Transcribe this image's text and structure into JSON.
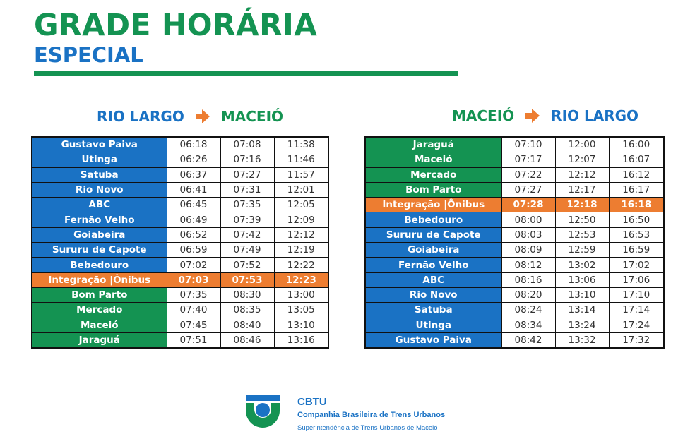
{
  "header": {
    "title": "GRADE HORÁRIA",
    "subtitle": "ESPECIAL"
  },
  "colors": {
    "green": "#149352",
    "blue": "#1a72c4",
    "orange": "#ed7d31"
  },
  "tables": [
    {
      "route_from": "RIO LARGO",
      "route_to": "MACEIÓ",
      "rows": [
        {
          "station": "Gustavo Paiva",
          "color": "blue",
          "times": [
            "06:18",
            "07:08",
            "11:38"
          ]
        },
        {
          "station": "Utinga",
          "color": "blue",
          "times": [
            "06:26",
            "07:16",
            "11:46"
          ]
        },
        {
          "station": "Satuba",
          "color": "blue",
          "times": [
            "06:37",
            "07:27",
            "11:57"
          ]
        },
        {
          "station": "Rio Novo",
          "color": "blue",
          "times": [
            "06:41",
            "07:31",
            "12:01"
          ]
        },
        {
          "station": "ABC",
          "color": "blue",
          "times": [
            "06:45",
            "07:35",
            "12:05"
          ]
        },
        {
          "station": "Fernão Velho",
          "color": "blue",
          "times": [
            "06:49",
            "07:39",
            "12:09"
          ]
        },
        {
          "station": "Goiabeira",
          "color": "blue",
          "times": [
            "06:52",
            "07:42",
            "12:12"
          ]
        },
        {
          "station": "Sururu de Capote",
          "color": "blue",
          "times": [
            "06:59",
            "07:49",
            "12:19"
          ]
        },
        {
          "station": "Bebedouro",
          "color": "blue",
          "times": [
            "07:02",
            "07:52",
            "12:22"
          ]
        },
        {
          "station": "Integração |Ônibus",
          "color": "orange",
          "times": [
            "07:03",
            "07:53",
            "12:23"
          ]
        },
        {
          "station": "Bom Parto",
          "color": "green",
          "times": [
            "07:35",
            "08:30",
            "13:00"
          ]
        },
        {
          "station": "Mercado",
          "color": "green",
          "times": [
            "07:40",
            "08:35",
            "13:05"
          ]
        },
        {
          "station": "Maceió",
          "color": "green",
          "times": [
            "07:45",
            "08:40",
            "13:10"
          ]
        },
        {
          "station": "Jaraguá",
          "color": "green",
          "times": [
            "07:51",
            "08:46",
            "13:16"
          ]
        }
      ]
    },
    {
      "route_from": "MACEIÓ",
      "route_to": "RIO LARGO",
      "rows": [
        {
          "station": "Jaraguá",
          "color": "green",
          "times": [
            "07:10",
            "12:00",
            "16:00"
          ]
        },
        {
          "station": "Maceió",
          "color": "green",
          "times": [
            "07:17",
            "12:07",
            "16:07"
          ]
        },
        {
          "station": "Mercado",
          "color": "green",
          "times": [
            "07:22",
            "12:12",
            "16:12"
          ]
        },
        {
          "station": "Bom Parto",
          "color": "green",
          "times": [
            "07:27",
            "12:17",
            "16:17"
          ]
        },
        {
          "station": "Integração |Ônibus",
          "color": "orange",
          "times": [
            "07:28",
            "12:18",
            "16:18"
          ]
        },
        {
          "station": "Bebedouro",
          "color": "blue",
          "times": [
            "08:00",
            "12:50",
            "16:50"
          ]
        },
        {
          "station": "Sururu de Capote",
          "color": "blue",
          "times": [
            "08:03",
            "12:53",
            "16:53"
          ]
        },
        {
          "station": "Goiabeira",
          "color": "blue",
          "times": [
            "08:09",
            "12:59",
            "16:59"
          ]
        },
        {
          "station": "Fernão Velho",
          "color": "blue",
          "times": [
            "08:12",
            "13:02",
            "17:02"
          ]
        },
        {
          "station": "ABC",
          "color": "blue",
          "times": [
            "08:16",
            "13:06",
            "17:06"
          ]
        },
        {
          "station": "Rio Novo",
          "color": "blue",
          "times": [
            "08:20",
            "13:10",
            "17:10"
          ]
        },
        {
          "station": "Satuba",
          "color": "blue",
          "times": [
            "08:24",
            "13:14",
            "17:14"
          ]
        },
        {
          "station": "Utinga",
          "color": "blue",
          "times": [
            "08:34",
            "13:24",
            "17:24"
          ]
        },
        {
          "station": "Gustavo Paiva",
          "color": "blue",
          "times": [
            "08:42",
            "13:32",
            "17:32"
          ]
        }
      ]
    }
  ],
  "footer": {
    "logo_icon": "cbtu-logo-icon",
    "brand_short": "CBTU",
    "brand_full": "Companhia Brasileira de Trens Urbanos",
    "brand_sub": "Superintendência de Trens Urbanos de Maceió"
  }
}
